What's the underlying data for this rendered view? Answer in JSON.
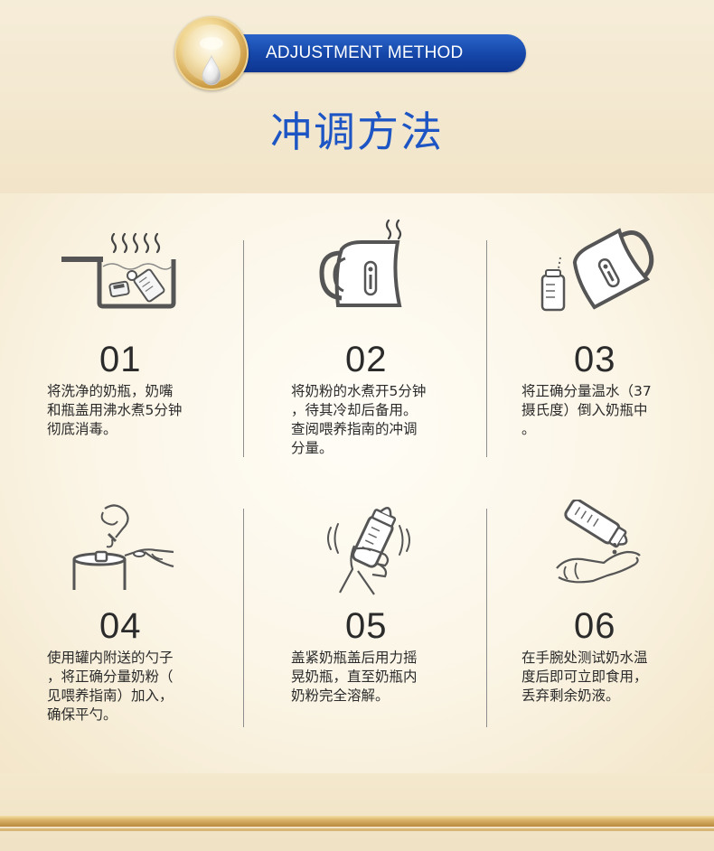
{
  "header": {
    "badge": "ADJUSTMENT METHOD",
    "title": "冲调方法"
  },
  "steps": [
    {
      "number": "01",
      "icon": "boiling-pot-icon",
      "text": "将洗净的奶瓶，奶嘴\n和瓶盖用沸水煮5分钟\n彻底消毒。"
    },
    {
      "number": "02",
      "icon": "kettle-icon",
      "text": "将奶粉的水煮开5分钟\n，待其冷却后备用。\n查阅喂养指南的冲调\n分量。"
    },
    {
      "number": "03",
      "icon": "pour-kettle-icon",
      "text": "将正确分量温水（37\n摄氏度）倒入奶瓶中\n。"
    },
    {
      "number": "04",
      "icon": "scoop-powder-icon",
      "text": "使用罐内附送的勺子\n，将正确分量奶粉（\n见喂养指南）加入，\n确保平勺。"
    },
    {
      "number": "05",
      "icon": "shake-bottle-icon",
      "text": "盖紧奶瓶盖后用力摇\n晃奶瓶，直至奶瓶内\n奶粉完全溶解。"
    },
    {
      "number": "06",
      "icon": "wrist-test-icon",
      "text": "在手腕处测试奶水温\n度后即可立即食用，\n丢弃剩余奶液。"
    }
  ],
  "colors": {
    "title_blue": "#1d55c4",
    "badge_blue": "#1546a8",
    "gold": "#c9973f",
    "background": "#f5ecd8"
  }
}
